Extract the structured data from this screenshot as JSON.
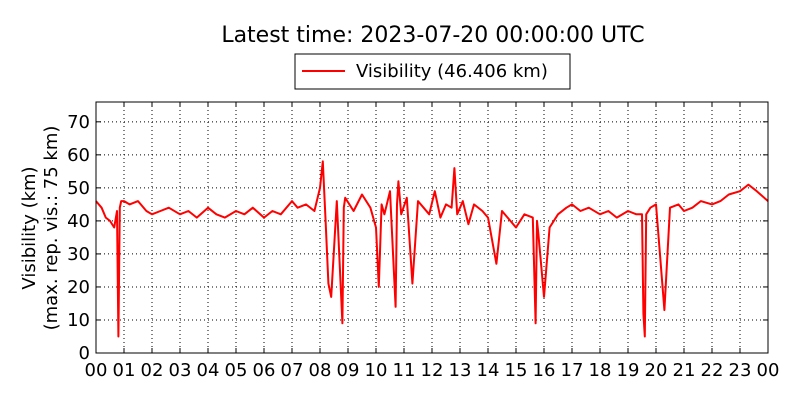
{
  "chart_data": {
    "type": "line",
    "title": "Latest time: 2023-07-20 00:00:00 UTC",
    "ylabel_line1": "Visibility (km)",
    "ylabel_line2": "(max. rep. vis.: 75 km)",
    "xlabel": "",
    "ylim": [
      0,
      76
    ],
    "xlim": [
      0,
      24
    ],
    "yticks": [
      0,
      10,
      20,
      30,
      40,
      50,
      60,
      70
    ],
    "xtick_labels": [
      "00",
      "01",
      "02",
      "03",
      "04",
      "05",
      "06",
      "07",
      "08",
      "09",
      "10",
      "11",
      "12",
      "13",
      "14",
      "15",
      "16",
      "17",
      "18",
      "19",
      "20",
      "21",
      "22",
      "23",
      "00"
    ],
    "grid": true,
    "legend": {
      "placement": "top-center",
      "entry": "Visibility (46.406 km)"
    },
    "colors": {
      "series": "#ff0000",
      "grid": "#000000",
      "axis": "#000000"
    },
    "series": [
      {
        "name": "Visibility (46.406 km)",
        "x": [
          0,
          0.2,
          0.35,
          0.5,
          0.65,
          0.75,
          0.8,
          0.85,
          0.9,
          1.0,
          1.2,
          1.5,
          1.8,
          2.0,
          2.3,
          2.6,
          3.0,
          3.3,
          3.6,
          4.0,
          4.3,
          4.6,
          5.0,
          5.3,
          5.6,
          6.0,
          6.3,
          6.6,
          7.0,
          7.2,
          7.5,
          7.8,
          8.0,
          8.1,
          8.2,
          8.3,
          8.4,
          8.6,
          8.8,
          8.85,
          8.9,
          9.2,
          9.5,
          9.8,
          10.0,
          10.1,
          10.2,
          10.3,
          10.5,
          10.7,
          10.75,
          10.8,
          10.9,
          11.1,
          11.3,
          11.5,
          11.7,
          11.9,
          12.1,
          12.3,
          12.5,
          12.7,
          12.8,
          12.9,
          13.1,
          13.3,
          13.5,
          13.8,
          14.0,
          14.3,
          14.5,
          14.8,
          15.0,
          15.3,
          15.6,
          15.7,
          15.75,
          15.8,
          16.0,
          16.2,
          16.5,
          16.8,
          17.0,
          17.3,
          17.6,
          18.0,
          18.3,
          18.6,
          19.0,
          19.3,
          19.5,
          19.55,
          19.6,
          19.65,
          19.8,
          20.0,
          20.3,
          20.5,
          20.8,
          21.0,
          21.3,
          21.6,
          22.0,
          22.3,
          22.6,
          23.0,
          23.3,
          23.6,
          24.0
        ],
        "values": [
          46,
          44,
          41,
          40,
          38,
          43,
          5,
          44,
          46,
          46,
          45,
          46,
          43,
          42,
          43,
          44,
          42,
          43,
          41,
          44,
          42,
          41,
          43,
          42,
          44,
          41,
          43,
          42,
          46,
          44,
          45,
          43,
          50,
          58,
          40,
          21,
          17,
          46,
          9,
          44,
          47,
          43,
          48,
          44,
          38,
          20,
          45,
          42,
          49,
          14,
          45,
          52,
          42,
          47,
          21,
          46,
          44,
          42,
          49,
          41,
          45,
          44,
          56,
          42,
          46,
          39,
          45,
          43,
          41,
          27,
          43,
          40,
          38,
          42,
          41,
          9,
          40,
          36,
          17,
          38,
          42,
          44,
          45,
          43,
          44,
          42,
          43,
          41,
          43,
          42,
          42,
          12,
          5,
          42,
          44,
          45,
          13,
          44,
          45,
          43,
          44,
          46,
          45,
          46,
          48,
          49,
          51,
          49,
          46
        ]
      }
    ]
  }
}
